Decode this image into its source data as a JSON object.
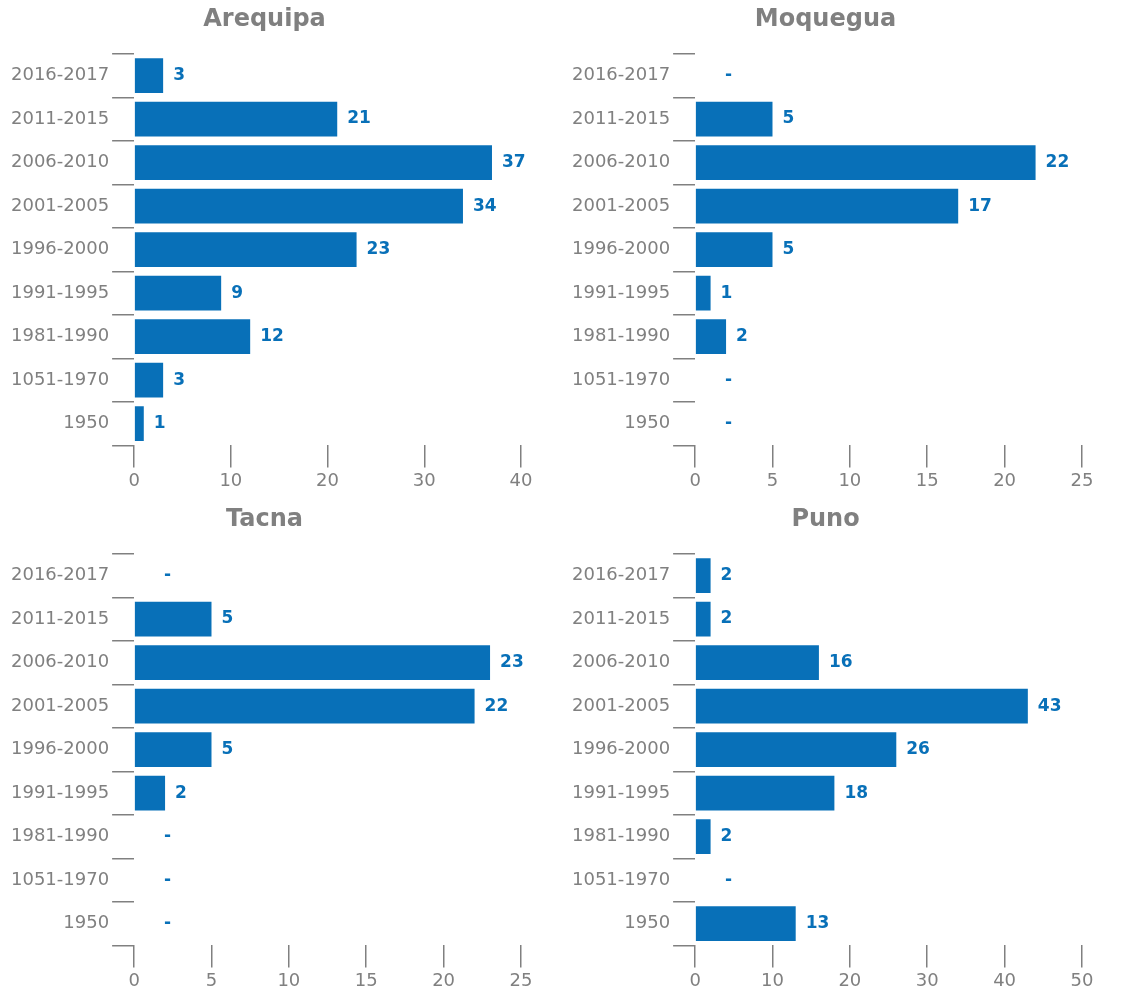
{
  "chart_data": [
    {
      "type": "bar",
      "orientation": "horizontal",
      "title": "Arequipa",
      "categories": [
        "2016-2017",
        "2011-2015",
        "2006-2010",
        "2001-2005",
        "1996-2000",
        "1991-1995",
        "1981-1990",
        "1051-1970",
        "1950"
      ],
      "values": [
        3,
        21,
        37,
        34,
        23,
        9,
        12,
        3,
        1
      ],
      "color": "#0870b8",
      "xlim": [
        0,
        40
      ],
      "xticks": [
        0,
        10,
        20,
        30,
        40
      ],
      "value_labels": [
        "3",
        "21",
        "37",
        "34",
        "23",
        "9",
        "12",
        "3",
        "1"
      ]
    },
    {
      "type": "bar",
      "orientation": "horizontal",
      "title": "Moquegua",
      "categories": [
        "2016-2017",
        "2011-2015",
        "2006-2010",
        "2001-2005",
        "1996-2000",
        "1991-1995",
        "1981-1990",
        "1051-1970",
        "1950"
      ],
      "values": [
        null,
        5,
        22,
        17,
        5,
        1,
        2,
        null,
        null
      ],
      "color": "#0870b8",
      "xlim": [
        0,
        25
      ],
      "xticks": [
        0,
        5,
        10,
        15,
        20,
        25
      ],
      "value_labels": [
        "-",
        "5",
        "22",
        "17",
        "5",
        "1",
        "2",
        "-",
        "-"
      ]
    },
    {
      "type": "bar",
      "orientation": "horizontal",
      "title": "Tacna",
      "categories": [
        "2016-2017",
        "2011-2015",
        "2006-2010",
        "2001-2005",
        "1996-2000",
        "1991-1995",
        "1981-1990",
        "1051-1970",
        "1950"
      ],
      "values": [
        null,
        5,
        23,
        22,
        5,
        2,
        null,
        null,
        null
      ],
      "color": "#0870b8",
      "xlim": [
        0,
        25
      ],
      "xticks": [
        0,
        5,
        10,
        15,
        20,
        25
      ],
      "value_labels": [
        "-",
        "5",
        "23",
        "22",
        "5",
        "2",
        "-",
        "-",
        "-"
      ]
    },
    {
      "type": "bar",
      "orientation": "horizontal",
      "title": "Puno",
      "categories": [
        "2016-2017",
        "2011-2015",
        "2006-2010",
        "2001-2005",
        "1996-2000",
        "1991-1995",
        "1981-1990",
        "1051-1970",
        "1950"
      ],
      "values": [
        2,
        2,
        16,
        43,
        26,
        18,
        2,
        null,
        13
      ],
      "color": "#0870b8",
      "xlim": [
        0,
        50
      ],
      "xticks": [
        0,
        10,
        20,
        30,
        40,
        50
      ],
      "value_labels": [
        "2",
        "2",
        "16",
        "43",
        "26",
        "18",
        "2",
        "-",
        "13"
      ]
    }
  ]
}
